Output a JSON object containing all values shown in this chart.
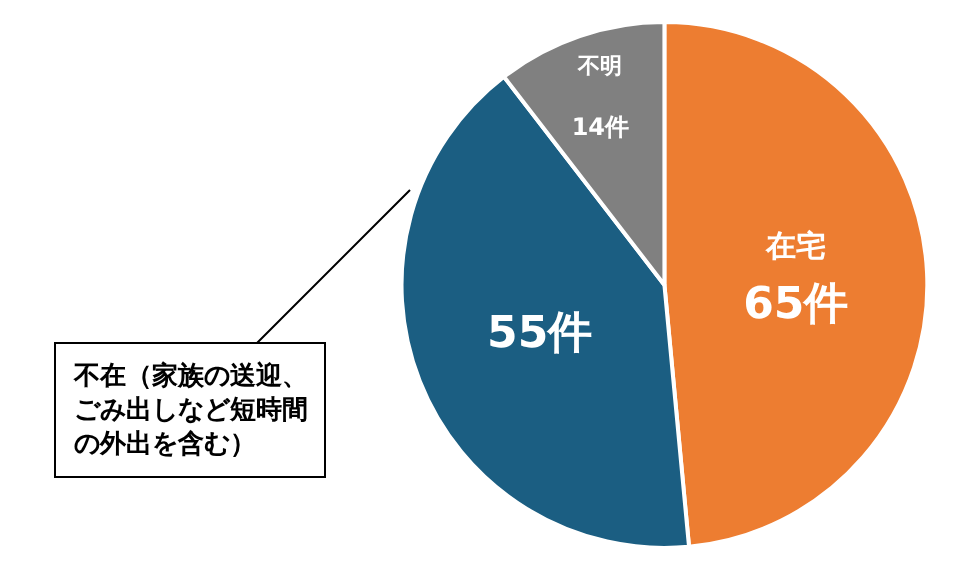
{
  "chart_data": {
    "type": "pie",
    "categories": [
      "在宅",
      "不在（家族の送迎、ごみ出しなど短時間の外出を含む）",
      "不明"
    ],
    "values": [
      65,
      55,
      14
    ],
    "colors": [
      "#ed7d31",
      "#1b5e82",
      "#808080"
    ],
    "value_labels": [
      "65件",
      "55件",
      "14件"
    ],
    "legend": false
  }
}
